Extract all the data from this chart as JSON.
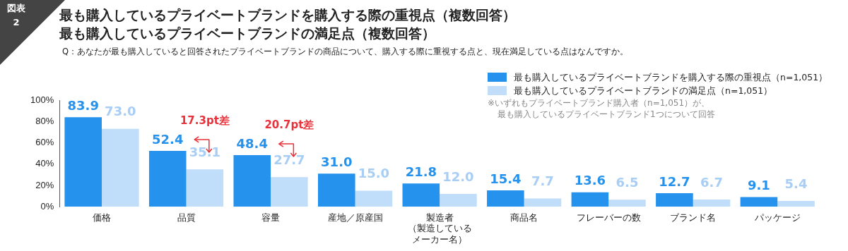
{
  "chart_data": {
    "type": "bar",
    "title": "最も購入しているプライベートブランドを購入する際の重視点（複数回答）",
    "subtitle": "最も購入しているプライベートブランドの満足点（複数回答）",
    "categories": [
      "価格",
      "品質",
      "容量",
      "産地／原産国",
      "製造者（製造しているメーカー名）",
      "商品名",
      "フレーバーの数",
      "ブランド名",
      "パッケージ"
    ],
    "series": [
      {
        "name": "最も購入しているプライベートブランドを購入する際の重視点（n=1,051）",
        "color": "#2592ee",
        "values": [
          83.9,
          52.4,
          48.4,
          31.0,
          21.8,
          15.4,
          13.6,
          12.7,
          9.1
        ],
        "value_labels": [
          "83.9",
          "52.4",
          "48.4",
          "31.0",
          "21.8",
          "15.4",
          "13.6",
          "12.7",
          "9.1"
        ]
      },
      {
        "name": "最も購入しているプライベートブランドの満足点（n=1,051）",
        "color": "#c0ddfa",
        "values": [
          73.0,
          35.1,
          27.7,
          15.0,
          12.0,
          7.7,
          6.5,
          6.7,
          5.4
        ],
        "value_labels": [
          "73.0",
          "35.1",
          "27.7",
          "15.0",
          "12.0",
          "7.7",
          "6.5",
          "6.7",
          "5.4"
        ]
      }
    ],
    "ylim": [
      0,
      100
    ],
    "yticks": [
      {
        "value": 0,
        "label": "0%"
      },
      {
        "value": 20,
        "label": "20%"
      },
      {
        "value": 40,
        "label": "40%"
      },
      {
        "value": 60,
        "label": "60%"
      },
      {
        "value": 80,
        "label": "80%"
      },
      {
        "value": 100,
        "label": "100%"
      }
    ],
    "grid": false,
    "legend": "top right",
    "annotations": [
      "図表\n2",
      "Q：あなたが最も購入していると回答されたプライベートブランドの商品について、購入する際に重視する点と、現在満足している点はなんですか。",
      "※いずれもプライベートブランド購入者（n=1,051）が、",
      "最も購入しているプライベートブランド1つについて回答",
      {
        "text": "17.3pt差",
        "x": "品質",
        "y": 52.4
      },
      {
        "text": "20.7pt差",
        "x": "容量",
        "y": 48.4
      }
    ]
  }
}
